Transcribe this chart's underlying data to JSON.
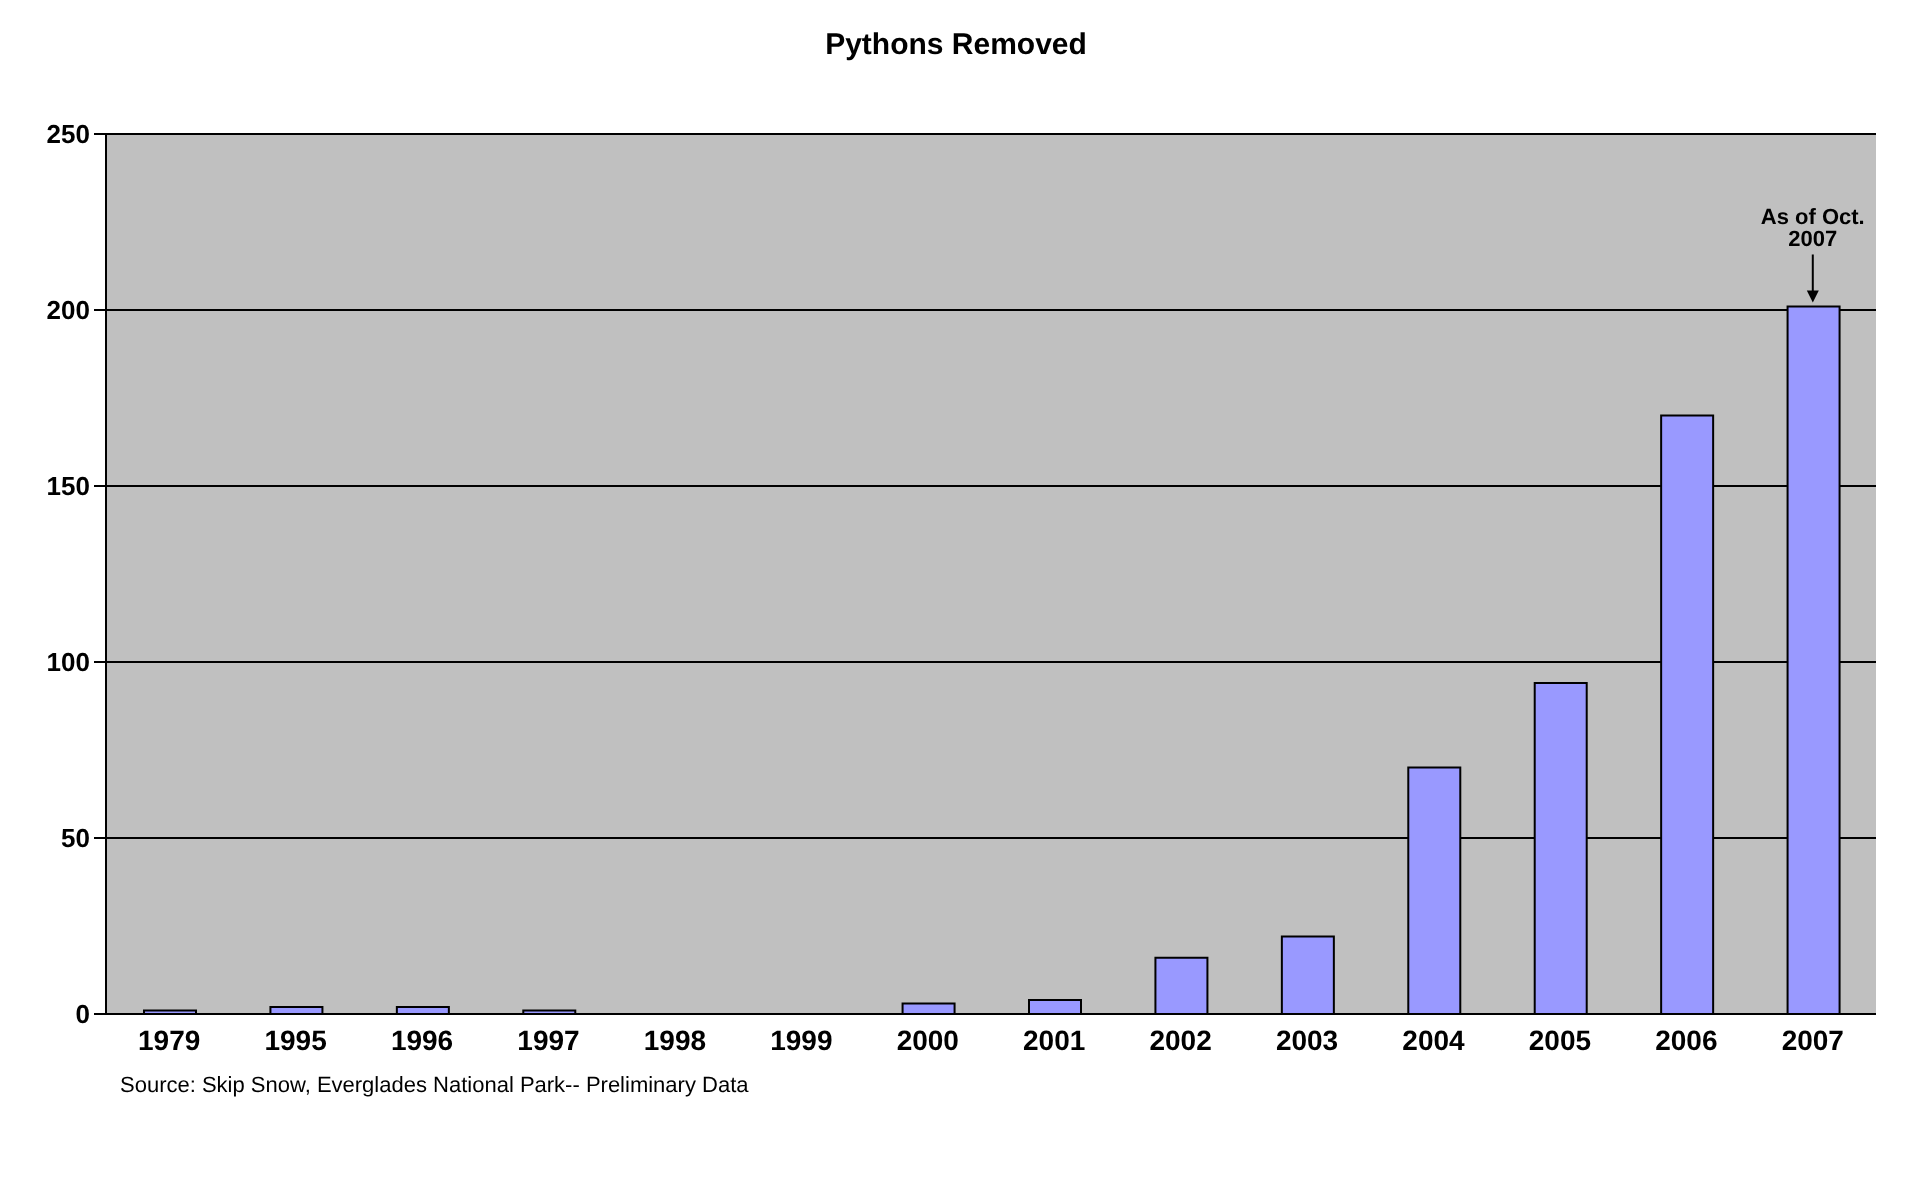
{
  "chart_data": {
    "type": "bar",
    "title": "Pythons Removed",
    "categories": [
      "1979",
      "1995",
      "1996",
      "1997",
      "1998",
      "1999",
      "2000",
      "2001",
      "2002",
      "2003",
      "2004",
      "2005",
      "2006",
      "2007"
    ],
    "values": [
      1,
      2,
      2,
      1,
      0,
      0,
      3,
      4,
      16,
      22,
      70,
      94,
      170,
      201
    ],
    "color": "#9999ff",
    "ylim": [
      0,
      250
    ],
    "yticks": [
      0,
      50,
      100,
      150,
      200,
      250
    ],
    "grid": "y",
    "annotations": [
      {
        "text": "As of Oct. 2007",
        "x": "2007",
        "y": 201
      },
      "Source: Skip Snow, Everglades National Park-- Preliminary Data"
    ]
  }
}
